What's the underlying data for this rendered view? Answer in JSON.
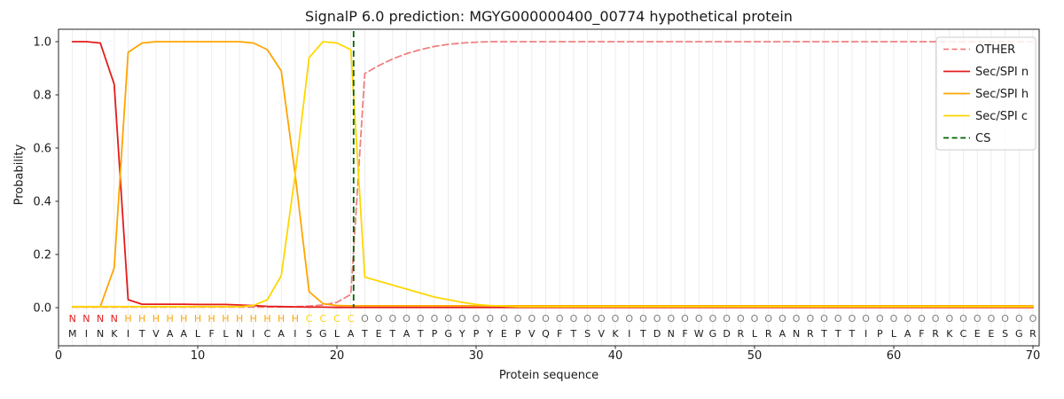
{
  "chart_data": {
    "type": "line",
    "title": "SignalP 6.0 prediction: MGYG000000400_00774 hypothetical protein",
    "xlabel": "Protein sequence",
    "ylabel": "Probability",
    "xticks": [
      0,
      10,
      20,
      30,
      40,
      50,
      60,
      70
    ],
    "yticks": [
      0.0,
      0.2,
      0.4,
      0.6,
      0.8,
      1.0
    ],
    "xlim": [
      0,
      70.5
    ],
    "ylim": [
      0.0,
      1.0
    ],
    "x_start": 1,
    "x_step": 1,
    "grid": "vertical-per-residue",
    "series": [
      {
        "name": "OTHER",
        "color": "#f08080",
        "dashed": true,
        "values": [
          0.002,
          0.002,
          0.002,
          0.002,
          0.002,
          0.002,
          0.002,
          0.002,
          0.002,
          0.002,
          0.002,
          0.002,
          0.002,
          0.002,
          0.002,
          0.003,
          0.004,
          0.006,
          0.01,
          0.02,
          0.05,
          0.88,
          0.91,
          0.935,
          0.955,
          0.97,
          0.982,
          0.99,
          0.995,
          0.998,
          1.0,
          1.0,
          1.0,
          1.0,
          1.0,
          1.0,
          1.0,
          1.0,
          1.0,
          1.0,
          1.0,
          1.0,
          1.0,
          1.0,
          1.0,
          1.0,
          1.0,
          1.0,
          1.0,
          1.0,
          1.0,
          1.0,
          1.0,
          1.0,
          1.0,
          1.0,
          1.0,
          1.0,
          1.0,
          1.0,
          1.0,
          1.0,
          1.0,
          1.0,
          1.0,
          1.0,
          1.0,
          1.0,
          1.0,
          1.0
        ]
      },
      {
        "name": "Sec/SPI n",
        "color": "#e31b1b",
        "dashed": false,
        "values": [
          1.0,
          1.0,
          0.995,
          0.84,
          0.03,
          0.013,
          0.013,
          0.013,
          0.013,
          0.012,
          0.012,
          0.012,
          0.01,
          0.008,
          0.005,
          0.004,
          0.003,
          0.002,
          0.002,
          0.001,
          0.001,
          0.001,
          0.001,
          0.001,
          0.001,
          0.001,
          0.001,
          0.001,
          0.001,
          0.001,
          0.001,
          0.001,
          0.001,
          0.001,
          0.001,
          0.001,
          0.001,
          0.001,
          0.001,
          0.001,
          0.001,
          0.001,
          0.001,
          0.001,
          0.001,
          0.001,
          0.001,
          0.001,
          0.001,
          0.001,
          0.001,
          0.001,
          0.001,
          0.001,
          0.001,
          0.001,
          0.001,
          0.001,
          0.001,
          0.001,
          0.001,
          0.001,
          0.001,
          0.001,
          0.001,
          0.001,
          0.001,
          0.001,
          0.001,
          0.001
        ]
      },
      {
        "name": "Sec/SPI h",
        "color": "#ffa500",
        "dashed": false,
        "values": [
          0.003,
          0.003,
          0.004,
          0.15,
          0.96,
          0.995,
          1.0,
          1.0,
          1.0,
          1.0,
          1.0,
          1.0,
          1.0,
          0.995,
          0.97,
          0.89,
          0.5,
          0.06,
          0.015,
          0.008,
          0.007,
          0.007,
          0.007,
          0.007,
          0.007,
          0.007,
          0.007,
          0.007,
          0.007,
          0.007,
          0.007,
          0.007,
          0.007,
          0.007,
          0.007,
          0.007,
          0.007,
          0.007,
          0.007,
          0.007,
          0.007,
          0.007,
          0.007,
          0.007,
          0.007,
          0.007,
          0.007,
          0.007,
          0.007,
          0.007,
          0.007,
          0.007,
          0.007,
          0.007,
          0.007,
          0.007,
          0.007,
          0.007,
          0.007,
          0.007,
          0.007,
          0.007,
          0.007,
          0.007,
          0.007,
          0.007,
          0.007,
          0.007,
          0.007,
          0.007
        ]
      },
      {
        "name": "Sec/SPI c",
        "color": "#ffd700",
        "dashed": false,
        "values": [
          0.004,
          0.004,
          0.004,
          0.004,
          0.004,
          0.004,
          0.004,
          0.004,
          0.004,
          0.004,
          0.004,
          0.004,
          0.004,
          0.008,
          0.03,
          0.12,
          0.5,
          0.94,
          1.0,
          0.995,
          0.97,
          0.115,
          0.1,
          0.085,
          0.07,
          0.055,
          0.04,
          0.03,
          0.02,
          0.012,
          0.008,
          0.006,
          0.004,
          0.004,
          0.004,
          0.004,
          0.004,
          0.004,
          0.004,
          0.004,
          0.004,
          0.004,
          0.004,
          0.004,
          0.004,
          0.004,
          0.004,
          0.004,
          0.004,
          0.004,
          0.004,
          0.004,
          0.004,
          0.004,
          0.004,
          0.004,
          0.004,
          0.004,
          0.004,
          0.004,
          0.004,
          0.004,
          0.004,
          0.004,
          0.004,
          0.004,
          0.004,
          0.004,
          0.004,
          0.004
        ]
      }
    ],
    "cs_marker": {
      "name": "CS",
      "color": "#006400",
      "dashed": true,
      "position": 21.2,
      "between_residues": [
        21,
        22
      ]
    },
    "legend": {
      "position": "upper right",
      "entries": [
        "OTHER",
        "Sec/SPI n",
        "Sec/SPI h",
        "Sec/SPI c",
        "CS"
      ]
    },
    "sequence": "MINKITVAALFLNICAISGLATETATPGYPYEPVQFTSVKITDNFWGDRLRANRTTTIPLAFRKCEESGR",
    "region_spans": {
      "N": [
        1,
        4
      ],
      "H": [
        5,
        17
      ],
      "C": [
        18,
        21
      ],
      "O": [
        22,
        70
      ]
    },
    "region_colors": {
      "N": "#e31b1b",
      "H": "#ffa500",
      "C": "#ffd700",
      "O": "#7f7f7f"
    },
    "sequence_color": "#1a1a1a"
  }
}
